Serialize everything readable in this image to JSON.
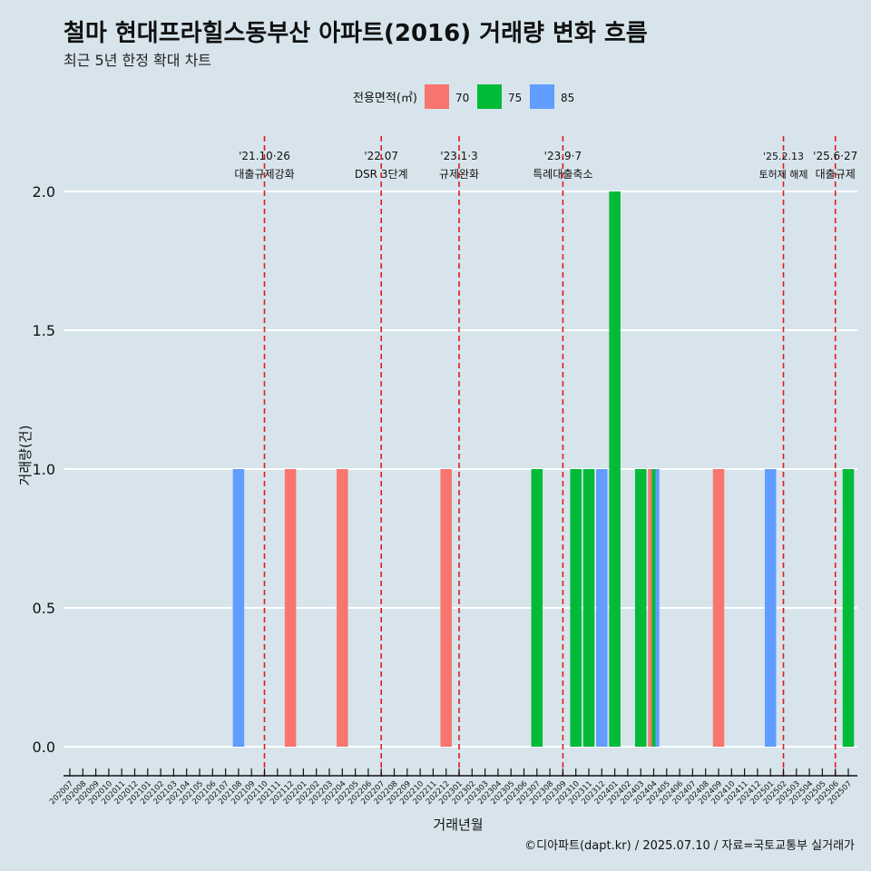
{
  "title": "철마 현대프라힐스동부산 아파트(2016) 거래량 변화 흐름",
  "subtitle": "최근 5년 한정 확대 차트",
  "caption": "©디아파트(dapt.kr) / 2025.07.10 / 자료=국토교통부 실거래가",
  "colors": {
    "70": "#f8766d",
    "75": "#00ba38",
    "85": "#619cff",
    "event_line": "#e31a1c",
    "grid": "#ffffff"
  },
  "chart_data": {
    "type": "bar",
    "xlabel": "거래년월",
    "ylabel": "거래량(건)",
    "ylim": [
      0,
      2
    ],
    "yticks": [
      "0.0",
      "0.5",
      "1.0",
      "1.5",
      "2.0"
    ],
    "legend": {
      "title": "전용면적(㎡)",
      "position": "top",
      "entries": [
        "70",
        "75",
        "85"
      ]
    },
    "categories": [
      "202007",
      "202008",
      "202009",
      "202010",
      "202011",
      "202012",
      "202101",
      "202102",
      "202103",
      "202104",
      "202105",
      "202106",
      "202107",
      "202108",
      "202109",
      "202110",
      "202111",
      "202112",
      "202201",
      "202202",
      "202203",
      "202204",
      "202205",
      "202206",
      "202207",
      "202208",
      "202209",
      "202210",
      "202211",
      "202212",
      "202301",
      "202302",
      "202303",
      "202304",
      "202305",
      "202306",
      "202307",
      "202308",
      "202309",
      "202310",
      "202311",
      "202312",
      "202401",
      "202402",
      "202403",
      "202404",
      "202405",
      "202406",
      "202407",
      "202408",
      "202409",
      "202410",
      "202411",
      "202412",
      "202501",
      "202502",
      "202503",
      "202504",
      "202505",
      "202506",
      "202507"
    ],
    "bars": [
      {
        "month": "202108",
        "area": "85",
        "value": 1
      },
      {
        "month": "202112",
        "area": "70",
        "value": 1
      },
      {
        "month": "202204",
        "area": "70",
        "value": 1
      },
      {
        "month": "202212",
        "area": "70",
        "value": 1
      },
      {
        "month": "202307",
        "area": "75",
        "value": 1
      },
      {
        "month": "202310",
        "area": "75",
        "value": 1
      },
      {
        "month": "202311",
        "area": "75",
        "value": 1
      },
      {
        "month": "202312",
        "area": "85",
        "value": 1
      },
      {
        "month": "202401",
        "area": "75",
        "value": 2
      },
      {
        "month": "202403",
        "area": "75",
        "value": 1
      },
      {
        "month": "202404",
        "area": "70",
        "value": 1
      },
      {
        "month": "202404",
        "area": "75",
        "value": 1
      },
      {
        "month": "202404",
        "area": "85",
        "value": 1
      },
      {
        "month": "202409",
        "area": "70",
        "value": 1
      },
      {
        "month": "202501",
        "area": "85",
        "value": 1
      },
      {
        "month": "202507",
        "area": "75",
        "value": 1
      }
    ],
    "events": [
      {
        "month": "202110",
        "date": "'21.10·26",
        "label": "대출규제강화",
        "small": false
      },
      {
        "month": "202207",
        "date": "'22.07",
        "label": "DSR 3단계",
        "small": false
      },
      {
        "month": "202301",
        "date": "'23.1·3",
        "label": "규제완화",
        "small": false
      },
      {
        "month": "202309",
        "date": "'23.9·7",
        "label": "특례대출축소",
        "small": false
      },
      {
        "month": "202502",
        "date": "'25.2.13",
        "label": "토허제 해제",
        "small": true
      },
      {
        "month": "202506",
        "date": "'25.6·27",
        "label": "대출규제",
        "small": false
      }
    ]
  }
}
